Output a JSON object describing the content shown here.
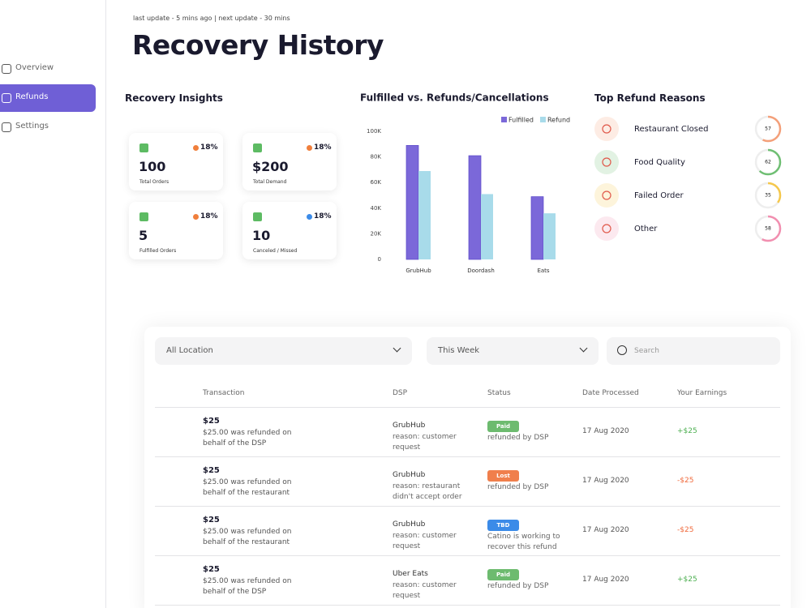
{
  "sidebar": {
    "items": [
      "Overview",
      "Refunds",
      "Settings"
    ],
    "active": 1
  },
  "header": {
    "update_note": "last update - 5 mins ago | next update - 30 mins",
    "title": "Recovery History"
  },
  "insights": {
    "title": "Recovery Insights",
    "cards": [
      {
        "change": "18%",
        "badge_color": "#f07f3c",
        "value": "100",
        "label": "Total Orders"
      },
      {
        "change": "18%",
        "badge_color": "#f07f3c",
        "value": "$200",
        "label": "Total Demand"
      },
      {
        "change": "18%",
        "badge_color": "#f07f3c",
        "value": "5",
        "label": "Fulfilled Orders"
      },
      {
        "change": "18%",
        "badge_color": "#3b8be8",
        "value": "10",
        "label": "Canceled / Missed"
      }
    ]
  },
  "chart_data": {
    "type": "bar",
    "title": "Fulfilled vs. Refunds/Cancellations",
    "categories": [
      "GrubHub",
      "Doordash",
      "Eats"
    ],
    "series": [
      {
        "name": "Fulfilled",
        "color": "#7b68d9",
        "values": [
          89000,
          81000,
          49000
        ]
      },
      {
        "name": "Refund",
        "color": "#a8dbea",
        "values": [
          69000,
          51000,
          36000
        ]
      }
    ],
    "ylim": [
      0,
      100000
    ],
    "yticks": [
      0,
      {
        "value": 20000,
        "label": "20K"
      },
      {
        "value": 40000,
        "label": "40K"
      },
      {
        "value": 60000,
        "label": "60K"
      },
      {
        "value": 80000,
        "label": "80K"
      },
      {
        "value": 100000,
        "label": "100K"
      }
    ],
    "legend": "top-right"
  },
  "reasons": {
    "title": "Top Refund Reasons",
    "items": [
      {
        "label": "Restaurant Closed",
        "value": 57,
        "color": "#f4a07a"
      },
      {
        "label": "Food Quality",
        "value": 62,
        "color": "#6fbf73"
      },
      {
        "label": "Failed Order",
        "value": 35,
        "color": "#f5c84c"
      },
      {
        "label": "Other",
        "value": 58,
        "color": "#f28fb0"
      }
    ]
  },
  "filters": {
    "location": "All Location",
    "period": "This Week",
    "search": "Search"
  },
  "table": {
    "columns": [
      "Transaction",
      "DSP",
      "Status",
      "Date Processed",
      "Your Earnings"
    ],
    "rows": [
      {
        "amount": "$25",
        "description": "$25.00 was refunded on behalf of the DSP",
        "dsp": "GrubHub",
        "reason": "reason: customer request",
        "status": "Paid",
        "status_color": "#6dbb6f",
        "status_note": "refunded by DSP",
        "date": "17 Aug 2020",
        "earnings": "+$25",
        "earnings_color": "#4caf50"
      },
      {
        "amount": "$25",
        "description": "$25.00 was refunded on behalf of the restaurant",
        "dsp": "GrubHub",
        "reason": "reason: restaurant didn't accept order",
        "status": "Lost",
        "status_color": "#f07f4c",
        "status_note": "refunded by DSP",
        "date": "17 Aug 2020",
        "earnings": "-$25",
        "earnings_color": "#f06a3c"
      },
      {
        "amount": "$25",
        "description": "$25.00 was refunded on behalf of the restaurant",
        "dsp": "GrubHub",
        "reason": "reason: customer request",
        "status": "TBD",
        "status_color": "#3b8be8",
        "status_note": "Catino is working to recover this refund",
        "date": "17 Aug 2020",
        "earnings": "-$25",
        "earnings_color": "#f06a3c"
      },
      {
        "amount": "$25",
        "description": "$25.00 was refunded on behalf of the DSP",
        "dsp": "Uber Eats",
        "reason": "reason: customer request",
        "status": "Paid",
        "status_color": "#6dbb6f",
        "status_note": "refunded by DSP",
        "date": "17 Aug 2020",
        "earnings": "+$25",
        "earnings_color": "#4caf50"
      }
    ]
  }
}
